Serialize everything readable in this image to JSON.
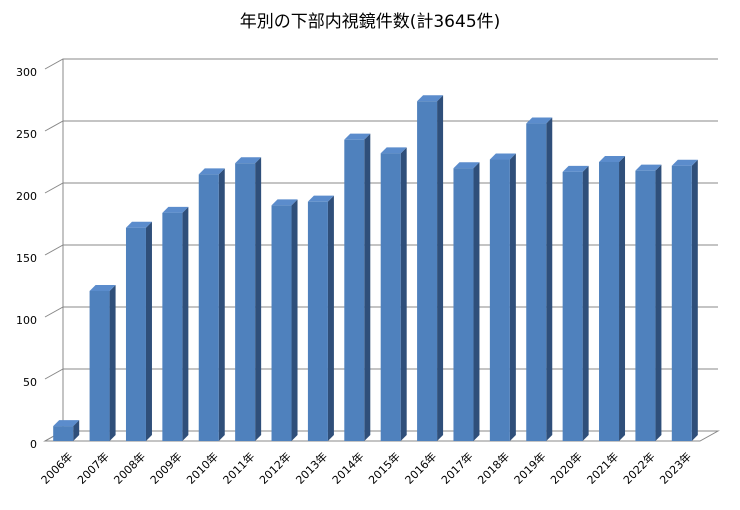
{
  "chart_data": {
    "type": "bar3d",
    "title": "年別の下部内視鏡件数(計3645件)",
    "categories": [
      "2006年",
      "2007年",
      "2008年",
      "2009年",
      "2010年",
      "2011年",
      "2012年",
      "2013年",
      "2014年",
      "2015年",
      "2016年",
      "2017年",
      "2018年",
      "2019年",
      "2020年",
      "2021年",
      "2022年",
      "2023年"
    ],
    "values": [
      12,
      121,
      172,
      184,
      215,
      224,
      190,
      193,
      243,
      232,
      274,
      220,
      227,
      256,
      217,
      225,
      218,
      222
    ],
    "color": "#4f81bd",
    "ylim": [
      0,
      300
    ],
    "yticks": [
      0,
      50,
      100,
      150,
      200,
      250,
      300
    ],
    "grid": true
  }
}
